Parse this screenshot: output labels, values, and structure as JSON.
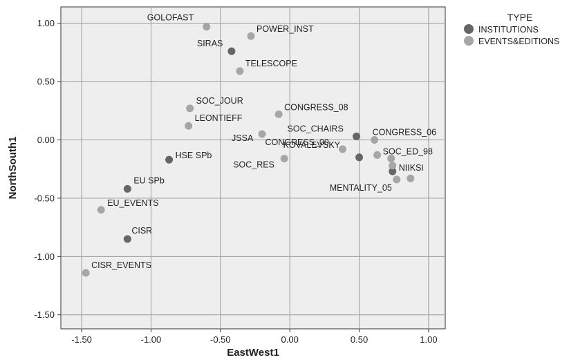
{
  "chart_data": {
    "type": "scatter",
    "xlabel": "EastWest1",
    "ylabel": "NorthSouth1",
    "xlim": [
      -1.65,
      1.12
    ],
    "ylim": [
      -1.62,
      1.14
    ],
    "x_ticks": [
      -1.5,
      -1.0,
      -0.5,
      0.0,
      0.5,
      1.0
    ],
    "x_tick_labels": [
      "-1.50",
      "-1.00",
      "-0.50",
      "0.00",
      "0.50",
      "1.00"
    ],
    "y_ticks": [
      1.0,
      0.5,
      0.0,
      -0.5,
      -1.0,
      -1.5
    ],
    "y_tick_labels": [
      "1.00",
      "0.50",
      "0.00",
      "-0.50",
      "-1.00",
      "-1.50"
    ],
    "grid": true,
    "legend": {
      "title": "TYPE",
      "placement": "right",
      "entries": [
        {
          "name": "INSTITUTIONS",
          "color": "#666666"
        },
        {
          "name": "EVENTS&EDITIONS",
          "color": "#a6a6a6"
        }
      ]
    },
    "series": [
      {
        "name": "INSTITUTIONS",
        "color": "#666666",
        "points": [
          {
            "label": "SIRAS",
            "x": -0.42,
            "y": 0.76
          },
          {
            "label": "HSE SPb",
            "x": -0.87,
            "y": -0.17
          },
          {
            "label": "EU SPb",
            "x": -1.17,
            "y": -0.42
          },
          {
            "label": "CISR",
            "x": -1.17,
            "y": -0.85
          },
          {
            "label": "SOC_CHAIRS",
            "x": 0.48,
            "y": 0.03
          },
          {
            "label": "KOVALEVSKY",
            "x": 0.5,
            "y": -0.15
          },
          {
            "label": "NIIKSI",
            "x": 0.74,
            "y": -0.27
          }
        ]
      },
      {
        "name": "EVENTS&EDITIONS",
        "color": "#a6a6a6",
        "points": [
          {
            "label": "GOLOFAST",
            "x": -0.6,
            "y": 0.97
          },
          {
            "label": "POWER_INST",
            "x": -0.28,
            "y": 0.89
          },
          {
            "label": "TELESCOPE",
            "x": -0.36,
            "y": 0.59
          },
          {
            "label": "SOC_JOUR",
            "x": -0.72,
            "y": 0.27
          },
          {
            "label": "LEONTIEFF",
            "x": -0.73,
            "y": 0.12
          },
          {
            "label": "CONGRESS_08",
            "x": -0.08,
            "y": 0.22
          },
          {
            "label": "JSSA",
            "x": -0.2,
            "y": 0.05
          },
          {
            "label": "SOC_RES",
            "x": -0.04,
            "y": -0.16
          },
          {
            "label": "CONGRESS_00",
            "x": 0.38,
            "y": -0.08
          },
          {
            "label": "CONGRESS_06",
            "x": 0.61,
            "y": 0.0
          },
          {
            "label": "SOC_ED_98",
            "x": 0.63,
            "y": -0.13
          },
          {
            "label": "",
            "x": 0.73,
            "y": -0.16
          },
          {
            "label": "",
            "x": 0.74,
            "y": -0.22
          },
          {
            "label": "MENTALITY_05",
            "x": 0.77,
            "y": -0.34
          },
          {
            "label": "",
            "x": 0.87,
            "y": -0.33
          },
          {
            "label": "EU_EVENTS",
            "x": -1.36,
            "y": -0.6
          },
          {
            "label": "CISR_EVENTS",
            "x": -1.47,
            "y": -1.14
          }
        ]
      }
    ]
  }
}
